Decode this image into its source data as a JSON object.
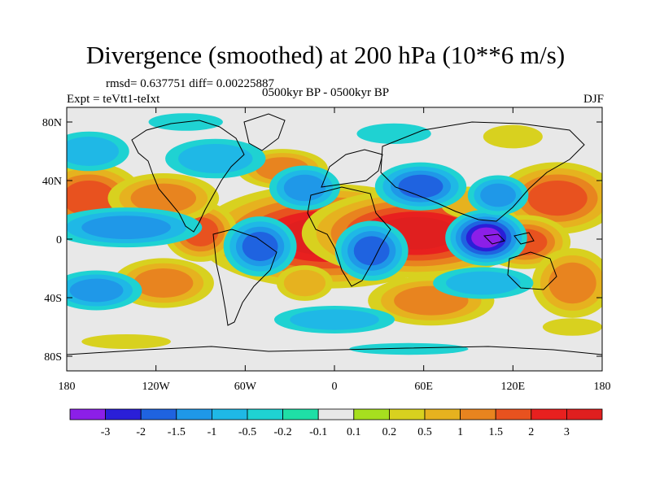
{
  "title": "Divergence (smoothed) at 200 hPa (10**6 m/s)",
  "stats": "rmsd= 0.637751 diff= 0.00225887",
  "period": "0500kyr BP - 0500kyr BP",
  "experiment": "Expt = teVtt1-teIxt",
  "season": "DJF",
  "axes": {
    "lat_ticks": [
      {
        "label": "80N",
        "lat": 80
      },
      {
        "label": "40N",
        "lat": 40
      },
      {
        "label": "0",
        "lat": 0
      },
      {
        "label": "40S",
        "lat": -40
      },
      {
        "label": "80S",
        "lat": -80
      }
    ],
    "lon_ticks": [
      {
        "label": "180",
        "lon": -180
      },
      {
        "label": "120W",
        "lon": -120
      },
      {
        "label": "60W",
        "lon": -60
      },
      {
        "label": "0",
        "lon": 0
      },
      {
        "label": "60E",
        "lon": 60
      },
      {
        "label": "120E",
        "lon": 120
      },
      {
        "label": "180",
        "lon": 180
      }
    ]
  },
  "colorbar": {
    "labels": [
      "-3",
      "-2",
      "-1.5",
      "-1",
      "-0.5",
      "-0.2",
      "-0.1",
      "0.1",
      "0.2",
      "0.5",
      "1",
      "1.5",
      "2",
      "3"
    ],
    "colors": [
      "#8c1fe8",
      "#2a1fd8",
      "#1f63e0",
      "#1f98e8",
      "#1fb8e6",
      "#1fd2d2",
      "#1fdfa6",
      "#e8e8e8",
      "#a6df1f",
      "#d8d11f",
      "#e6b21f",
      "#e8841f",
      "#e8521f",
      "#e8201f",
      "#e01f1f"
    ]
  },
  "field_blobs": [
    {
      "lon": -5,
      "lat": 2,
      "rx": 32,
      "ry": 13,
      "level": 3
    },
    {
      "lon": 55,
      "lat": 4,
      "rx": 28,
      "ry": 11,
      "level": 3
    },
    {
      "lon": -165,
      "lat": 28,
      "rx": 18,
      "ry": 12,
      "level": 1.5
    },
    {
      "lon": -90,
      "lat": 5,
      "rx": 12,
      "ry": 10,
      "level": 1.5
    },
    {
      "lon": -115,
      "lat": 28,
      "rx": 22,
      "ry": 10,
      "level": 1
    },
    {
      "lon": -35,
      "lat": 48,
      "rx": 18,
      "ry": 8,
      "level": 1
    },
    {
      "lon": 150,
      "lat": 28,
      "rx": 20,
      "ry": 12,
      "level": 1.5
    },
    {
      "lon": 128,
      "lat": -2,
      "rx": 15,
      "ry": 9,
      "level": 1.5
    },
    {
      "lon": -115,
      "lat": -30,
      "rx": 20,
      "ry": 10,
      "level": 1
    },
    {
      "lon": 65,
      "lat": -42,
      "rx": 25,
      "ry": 10,
      "level": 1
    },
    {
      "lon": 160,
      "lat": -30,
      "rx": 16,
      "ry": 14,
      "level": 1
    },
    {
      "lon": 90,
      "lat": 25,
      "rx": 14,
      "ry": 8,
      "level": 0.5
    },
    {
      "lon": -20,
      "lat": -30,
      "rx": 14,
      "ry": 9,
      "level": 0.5
    },
    {
      "lon": 102,
      "lat": 1,
      "rx": 10,
      "ry": 7,
      "level": -3
    },
    {
      "lon": -50,
      "lat": -5,
      "rx": 12,
      "ry": 10,
      "level": -1.5
    },
    {
      "lon": 25,
      "lat": -8,
      "rx": 12,
      "ry": 10,
      "level": -1.5
    },
    {
      "lon": 58,
      "lat": 36,
      "rx": 15,
      "ry": 8,
      "level": -1.5
    },
    {
      "lon": 110,
      "lat": 30,
      "rx": 12,
      "ry": 8,
      "level": -1
    },
    {
      "lon": -140,
      "lat": 8,
      "rx": 30,
      "ry": 8,
      "level": -1
    },
    {
      "lon": -20,
      "lat": 35,
      "rx": 14,
      "ry": 9,
      "level": -1
    },
    {
      "lon": -160,
      "lat": -35,
      "rx": 18,
      "ry": 8,
      "level": -1
    },
    {
      "lon": -80,
      "lat": 55,
      "rx": 25,
      "ry": 10,
      "level": -0.5
    },
    {
      "lon": -165,
      "lat": 60,
      "rx": 20,
      "ry": 10,
      "level": -0.5
    },
    {
      "lon": 100,
      "lat": -30,
      "rx": 25,
      "ry": 8,
      "level": -0.5
    },
    {
      "lon": 0,
      "lat": -55,
      "rx": 30,
      "ry": 7,
      "level": -0.5
    },
    {
      "lon": 120,
      "lat": 70,
      "rx": 20,
      "ry": 8,
      "level": 0.2
    },
    {
      "lon": 40,
      "lat": 72,
      "rx": 25,
      "ry": 7,
      "level": -0.2
    },
    {
      "lon": -100,
      "lat": 80,
      "rx": 25,
      "ry": 6,
      "level": -0.2
    },
    {
      "lon": 160,
      "lat": -60,
      "rx": 20,
      "ry": 6,
      "level": 0.2
    },
    {
      "lon": 50,
      "lat": -75,
      "rx": 40,
      "ry": 4,
      "level": -0.2
    },
    {
      "lon": -140,
      "lat": -70,
      "rx": 30,
      "ry": 5,
      "level": 0.2
    }
  ]
}
